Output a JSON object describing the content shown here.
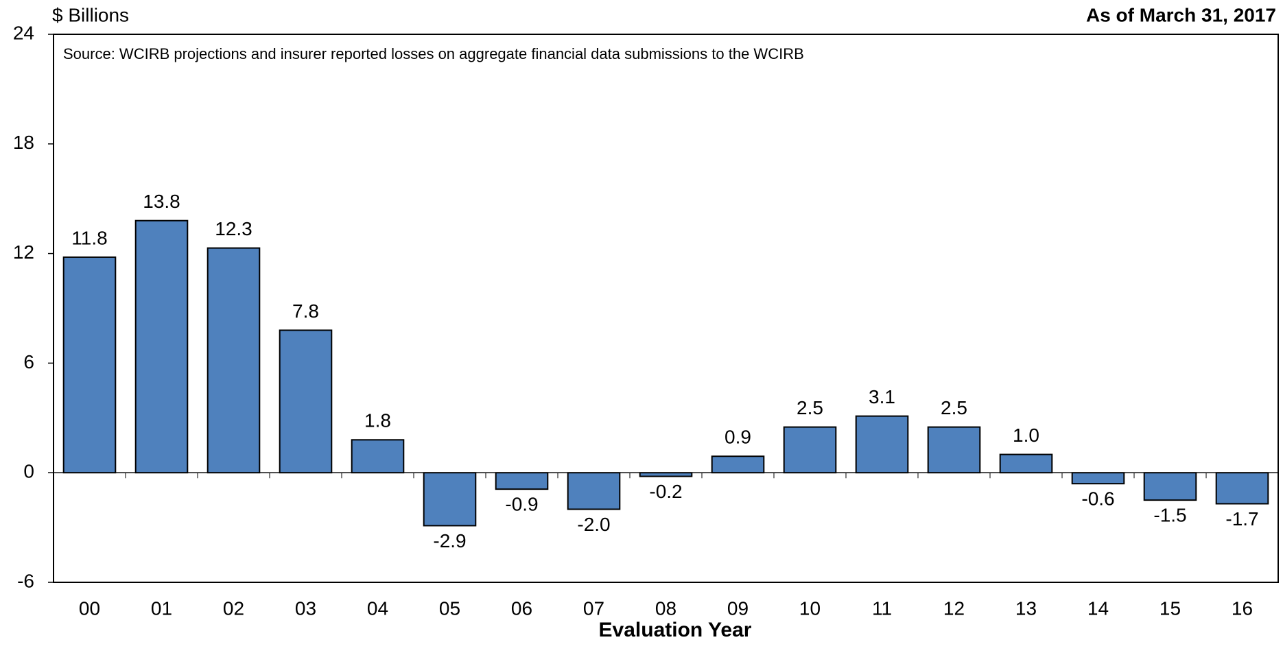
{
  "chart_data": {
    "type": "bar",
    "y_axis_label": "$ Billions",
    "subtitle": "As of March 31, 2017",
    "annotation": "Source: WCIRB projections and insurer reported losses on aggregate financial data submissions to the WCIRB",
    "x_axis_label": "Evaluation Year",
    "categories": [
      "00",
      "01",
      "02",
      "03",
      "04",
      "05",
      "06",
      "07",
      "08",
      "09",
      "10",
      "11",
      "12",
      "13",
      "14",
      "15",
      "16"
    ],
    "values": [
      11.8,
      13.8,
      12.3,
      7.8,
      1.8,
      -2.9,
      -0.9,
      -2.0,
      -0.2,
      0.9,
      2.5,
      3.1,
      2.5,
      1.0,
      -0.6,
      -1.5,
      -1.7
    ],
    "value_labels": [
      "11.8",
      "13.8",
      "12.3",
      "7.8",
      "1.8",
      "-2.9",
      "-0.9",
      "-2.0",
      "-0.2",
      "0.9",
      "2.5",
      "3.1",
      "2.5",
      "1.0",
      "-0.6",
      "-1.5",
      "-1.7"
    ],
    "color": "#4f81bd",
    "ylim": [
      -6,
      24
    ],
    "yticks": [
      -6,
      0,
      6,
      12,
      18,
      24
    ],
    "grid": false
  }
}
